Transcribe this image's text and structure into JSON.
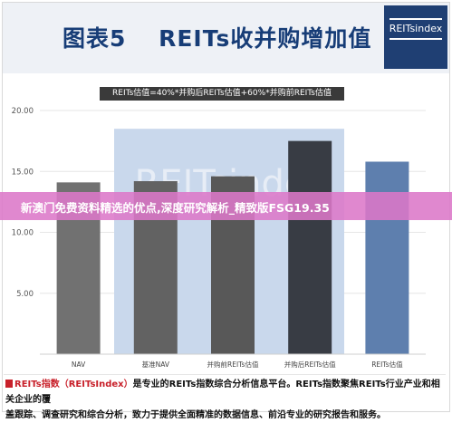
{
  "header": {
    "title": "图表5　 REITs收并购增加值",
    "logo_text": "REITsindex"
  },
  "watermark": "REITsindex",
  "banner": {
    "text": "新澳门免费资料精选的优点,深度研究解析_精致版FSG19.35"
  },
  "footer": {
    "brand": "REITs指数",
    "brand_paren": "（REITsIndex）",
    "text_line1": "是专业的REITs指数综合分析信息平台。REITs指数聚焦REITs行业产业和相关企业的覆",
    "text_line2": "盖跟踪、调查研究和综合分析，致力于提供全面精准的数据信息、前沿专业的研究报告和服务。"
  },
  "chart_data": {
    "type": "bar",
    "title": "REITs估值=40%*并购后REITs估值+60%*并购前REITs估值",
    "categories": [
      "NAV",
      "基准NAV",
      "并购前REITs估值",
      "并购后REITs估值",
      "REITs估值"
    ],
    "values": [
      14.1,
      14.2,
      14.6,
      17.5,
      15.8
    ],
    "background_band_value": 18.5,
    "ylim": [
      0,
      20
    ],
    "yticks": [
      0,
      5,
      10,
      15,
      20
    ],
    "ytick_labels": [
      "",
      "5.00",
      "10.00",
      "15.00",
      "20.00"
    ],
    "colors": {
      "bars": [
        "#717171",
        "#626262",
        "#585858",
        "#383c44",
        "#5e7fae"
      ],
      "band": "#c9d8ec",
      "grid": "#e6e6e6"
    },
    "grid": true
  }
}
